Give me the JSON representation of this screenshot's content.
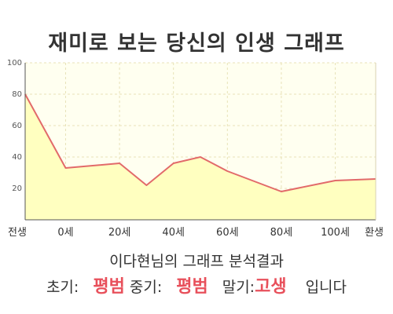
{
  "title": "재미로 보는 당신의 인생 그래프",
  "subtitle": "이다현님의 그래프 분석결과",
  "result": {
    "early_label": "초기:",
    "early_value": "평범",
    "mid_label": "중기:",
    "mid_value": "평범",
    "late_label": "말기:",
    "late_value": "고생",
    "suffix": "입니다"
  },
  "colors": {
    "line": "#e26a6a",
    "fill": "#ffffc0",
    "plot_bg": "#fffff0",
    "grid": "#e8e2b8",
    "accent_text": "#e8505b"
  },
  "chart_data": {
    "type": "area",
    "title": "",
    "xlabel": "",
    "ylabel": "",
    "ylim": [
      0,
      100
    ],
    "yticks": [
      20,
      40,
      60,
      80,
      100
    ],
    "x_tick_labels": [
      "전생",
      "0세",
      "20세",
      "40세",
      "60세",
      "80세",
      "100세",
      "환생"
    ],
    "x_tick_positions": [
      -15,
      0,
      20,
      40,
      60,
      80,
      100,
      115
    ],
    "xlim": [
      -15,
      115
    ],
    "grid": true,
    "series": [
      {
        "x": [
          -15,
          0,
          20,
          30,
          40,
          50,
          60,
          80,
          100,
          115
        ],
        "y": [
          80,
          33,
          36,
          22,
          36,
          40,
          31,
          18,
          25,
          26
        ]
      }
    ]
  }
}
